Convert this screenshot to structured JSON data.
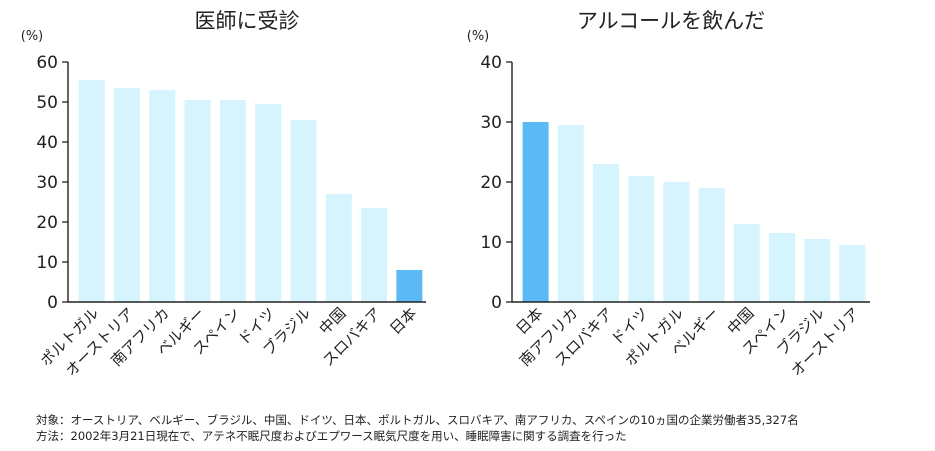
{
  "colors": {
    "bar": "#d6f4fd",
    "highlight": "#5bbaf5",
    "axis": "#222222",
    "text": "#222222"
  },
  "chart_data": [
    {
      "type": "bar",
      "title": "医師に受診",
      "ylabel": "(%)",
      "ylim": [
        0,
        60
      ],
      "yticks": [
        0,
        10,
        20,
        30,
        40,
        50,
        60
      ],
      "categories": [
        "ポルトガル",
        "オーストリア",
        "南アフリカ",
        "ベルギー",
        "スペイン",
        "ドイツ",
        "ブラジル",
        "中国",
        "スロバキア",
        "日本"
      ],
      "values": [
        55.5,
        53.5,
        53.0,
        50.5,
        50.5,
        49.5,
        45.5,
        27.0,
        23.5,
        8.0
      ],
      "highlight": "日本"
    },
    {
      "type": "bar",
      "title": "アルコールを飲んだ",
      "ylabel": "(%)",
      "ylim": [
        0,
        40
      ],
      "yticks": [
        0,
        10,
        20,
        30,
        40
      ],
      "categories": [
        "日本",
        "南アフリカ",
        "スロバキア",
        "ドイツ",
        "ポルトガル",
        "ベルギー",
        "中国",
        "スペイン",
        "ブラジル",
        "オーストリア"
      ],
      "values": [
        30.0,
        29.5,
        23.0,
        21.0,
        20.0,
        19.0,
        13.0,
        11.5,
        10.5,
        9.5
      ],
      "highlight": "日本"
    }
  ],
  "notes": {
    "target": "対象：オーストリア、ベルギー、ブラジル、中国、ドイツ、日本、ポルトガル、スロバキア、南アフリカ、スペインの10ヵ国の企業労働者35,327名",
    "method": "方法：2002年3月21日現在で、アテネ不眠尺度およびエプワース眠気尺度を用い、睡眠障害に関する調査を行った"
  }
}
